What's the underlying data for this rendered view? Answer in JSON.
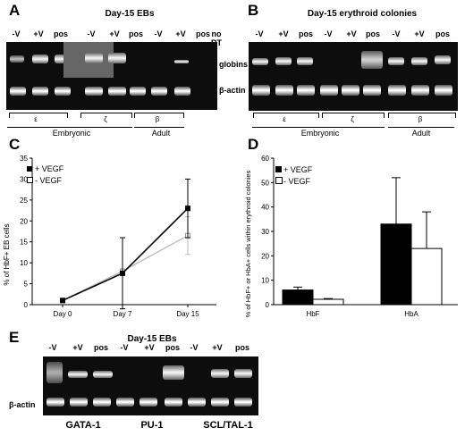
{
  "panelA": {
    "letter": "A",
    "title": "Day-15 EBs",
    "lanes": [
      "-V",
      "+V",
      "pos",
      "-V",
      "+V",
      "pos",
      "-V",
      "+V",
      "pos",
      "no RT"
    ],
    "row1": "globins",
    "row2": "β-actin",
    "genes": [
      "ε",
      "ζ",
      "β"
    ],
    "group1": "Embryonic",
    "group2": "Adult"
  },
  "panelB": {
    "letter": "B",
    "title": "Day-15 erythroid colonies",
    "lanes": [
      "-V",
      "+V",
      "pos",
      "-V",
      "+V",
      "pos",
      "-V",
      "+V",
      "pos"
    ],
    "genes": [
      "ε",
      "ζ",
      "β"
    ],
    "group1": "Embryonic",
    "group2": "Adult"
  },
  "panelC": {
    "letter": "C",
    "ylabel": "% of HbF+ EB cells",
    "legend_plus": "+ VEGF",
    "legend_minus": "- VEGF"
  },
  "panelD": {
    "letter": "D",
    "ylabel": "% of HbF+ or HbA+ cells within erythroid colonies",
    "legend_plus": "+ VEGF",
    "legend_minus": "- VEGF"
  },
  "panelE": {
    "letter": "E",
    "title": "Day-15 EBs",
    "lanes": [
      "-V",
      "+V",
      "pos",
      "-V",
      "+V",
      "pos",
      "-V",
      "+V",
      "pos"
    ],
    "row2": "β-actin",
    "genes": [
      "GATA-1",
      "PU-1",
      "SCL/TAL-1"
    ]
  },
  "chart_data": [
    {
      "type": "line",
      "panel": "C",
      "categories": [
        "Day 0",
        "Day 7",
        "Day 15"
      ],
      "series": [
        {
          "name": "+ VEGF",
          "values": [
            1,
            7.5,
            23
          ],
          "error": [
            0,
            8.5,
            7
          ]
        },
        {
          "name": "- VEGF",
          "values": [
            1,
            8,
            16.5
          ],
          "error": [
            0,
            0,
            4.5
          ]
        }
      ],
      "ylim": [
        0,
        35
      ],
      "yticks": [
        0,
        5,
        10,
        15,
        20,
        25,
        30,
        35
      ],
      "ylabel": "% of HbF+ EB cells"
    },
    {
      "type": "bar",
      "panel": "D",
      "categories": [
        "HbF",
        "HbA"
      ],
      "series": [
        {
          "name": "+ VEGF",
          "values": [
            6,
            33
          ],
          "error": [
            1.2,
            19
          ]
        },
        {
          "name": "- VEGF",
          "values": [
            2.2,
            23
          ],
          "error": [
            0.3,
            15
          ]
        }
      ],
      "ylim": [
        0,
        60
      ],
      "yticks": [
        0,
        10,
        20,
        30,
        40,
        50,
        60
      ],
      "ylabel": "% of HbF+ or HbA+ cells within erythroid colonies"
    }
  ]
}
